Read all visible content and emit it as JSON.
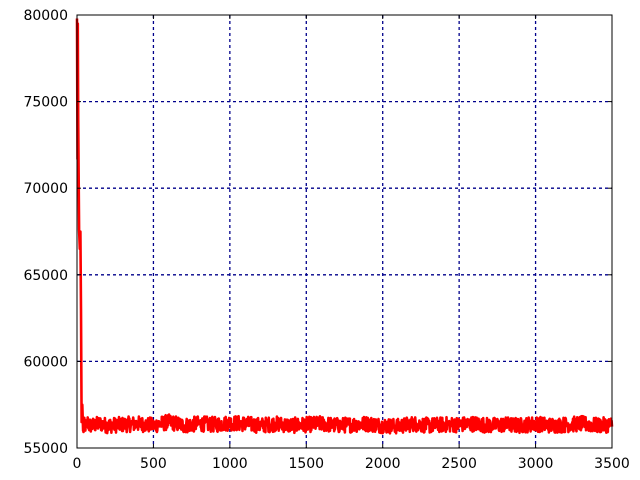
{
  "chart_data": {
    "type": "line",
    "title": "",
    "xlabel": "",
    "ylabel": "",
    "xlim": [
      0,
      3500
    ],
    "ylim": [
      55000,
      80000
    ],
    "xticks": [
      0,
      500,
      1000,
      1500,
      2000,
      2500,
      3000,
      3500
    ],
    "yticks": [
      55000,
      60000,
      65000,
      70000,
      75000,
      80000
    ],
    "x_tick_labels": [
      "0",
      "500",
      "1000",
      "1500",
      "2000",
      "2500",
      "3000",
      "3500"
    ],
    "y_tick_labels": [
      "55000",
      "60000",
      "65000",
      "70000",
      "75000",
      "80000"
    ],
    "grid": true,
    "grid_color": "#00008b",
    "series": [
      {
        "color": "#ff0000",
        "x": [
          0,
          3,
          5,
          8,
          10,
          14,
          18,
          22,
          26,
          30,
          35,
          40,
          50,
          60,
          70,
          80,
          100,
          150,
          200,
          300,
          400,
          500,
          600,
          700,
          800,
          900,
          1000,
          1100,
          1200,
          1300,
          1400,
          1500,
          1600,
          1700,
          1800,
          1900,
          2000,
          2100,
          2200,
          2300,
          2400,
          2500,
          2600,
          2700,
          2800,
          2900,
          3000,
          3100,
          3200,
          3300,
          3400,
          3500
        ],
        "y": [
          79800,
          71700,
          79500,
          74000,
          71800,
          67600,
          66500,
          67500,
          63000,
          56500,
          57500,
          56000,
          56400,
          56200,
          56500,
          56300,
          56300,
          56400,
          56300,
          56350,
          56400,
          56300,
          56500,
          56300,
          56400,
          56350,
          56450,
          56400,
          56300,
          56400,
          56300,
          56350,
          56400,
          56300,
          56350,
          56400,
          56300,
          56250,
          56400,
          56300,
          56350,
          56350,
          56400,
          56300,
          56350,
          56300,
          56400,
          56300,
          56350,
          56400,
          56300,
          56350
        ]
      }
    ]
  }
}
